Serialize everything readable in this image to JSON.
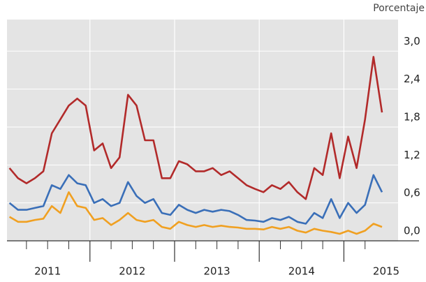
{
  "chart_data": {
    "type": "line",
    "y_axis_label": "Porcentaje",
    "x": [
      2011.05,
      2011.15,
      2011.25,
      2011.35,
      2011.45,
      2011.55,
      2011.65,
      2011.75,
      2011.85,
      2011.95,
      2012.05,
      2012.15,
      2012.25,
      2012.35,
      2012.45,
      2012.55,
      2012.65,
      2012.75,
      2012.85,
      2012.95,
      2013.05,
      2013.15,
      2013.25,
      2013.35,
      2013.45,
      2013.55,
      2013.65,
      2013.75,
      2013.85,
      2013.95,
      2014.05,
      2014.15,
      2014.25,
      2014.35,
      2014.45,
      2014.55,
      2014.65,
      2014.75,
      2014.85,
      2014.95,
      2015.05,
      2015.15,
      2015.25,
      2015.35,
      2015.45
    ],
    "series": [
      {
        "color": "#b22a2a",
        "values": [
          1.15,
          0.99,
          0.91,
          0.99,
          1.1,
          1.7,
          1.92,
          2.14,
          2.25,
          2.14,
          1.43,
          1.54,
          1.15,
          1.32,
          2.31,
          2.14,
          1.59,
          1.59,
          0.99,
          0.99,
          1.26,
          1.21,
          1.1,
          1.1,
          1.15,
          1.04,
          1.1,
          0.99,
          0.88,
          0.82,
          0.77,
          0.88,
          0.82,
          0.93,
          0.77,
          0.66,
          1.15,
          1.04,
          1.7,
          0.99,
          1.65,
          1.15,
          1.92,
          2.91,
          2.03
        ]
      },
      {
        "color": "#3a6fb8",
        "values": [
          0.6,
          0.49,
          0.49,
          0.52,
          0.55,
          0.88,
          0.82,
          1.04,
          0.91,
          0.88,
          0.6,
          0.66,
          0.55,
          0.6,
          0.93,
          0.71,
          0.6,
          0.66,
          0.44,
          0.41,
          0.57,
          0.49,
          0.44,
          0.49,
          0.46,
          0.49,
          0.47,
          0.41,
          0.33,
          0.32,
          0.3,
          0.36,
          0.33,
          0.38,
          0.3,
          0.27,
          0.44,
          0.36,
          0.66,
          0.36,
          0.6,
          0.44,
          0.57,
          1.04,
          0.77
        ]
      },
      {
        "color": "#f0a021",
        "values": [
          0.38,
          0.3,
          0.3,
          0.33,
          0.35,
          0.55,
          0.44,
          0.77,
          0.55,
          0.52,
          0.33,
          0.36,
          0.25,
          0.33,
          0.44,
          0.33,
          0.3,
          0.33,
          0.22,
          0.19,
          0.3,
          0.25,
          0.22,
          0.25,
          0.22,
          0.24,
          0.22,
          0.21,
          0.19,
          0.19,
          0.18,
          0.22,
          0.19,
          0.22,
          0.16,
          0.13,
          0.19,
          0.16,
          0.14,
          0.11,
          0.16,
          0.11,
          0.16,
          0.27,
          0.22
        ]
      }
    ],
    "xlim": [
      2011.02,
      2015.64
    ],
    "ylim": [
      0,
      3.5
    ],
    "yticks": [
      {
        "value": 0,
        "label": "0,0"
      },
      {
        "value": 0.6,
        "label": "0,6"
      },
      {
        "value": 1.2,
        "label": "1,2"
      },
      {
        "value": 1.8,
        "label": "1,8"
      },
      {
        "value": 2.4,
        "label": "2,4"
      },
      {
        "value": 3.0,
        "label": "3,0"
      }
    ],
    "xticks": [
      {
        "value": 2011.5,
        "label": "2011"
      },
      {
        "value": 2012.5,
        "label": "2012"
      },
      {
        "value": 2013.5,
        "label": "2013"
      },
      {
        "value": 2014.5,
        "label": "2014"
      },
      {
        "value": 2015.5,
        "label": "2015"
      }
    ],
    "year_lines": [
      2012,
      2013,
      2014,
      2015
    ],
    "xminor": [
      2011.25,
      2011.5,
      2011.75,
      2012.25,
      2012.5,
      2012.75,
      2013.25,
      2013.5,
      2013.75,
      2014.25,
      2014.5,
      2014.75,
      2015.25
    ],
    "grid": true
  }
}
